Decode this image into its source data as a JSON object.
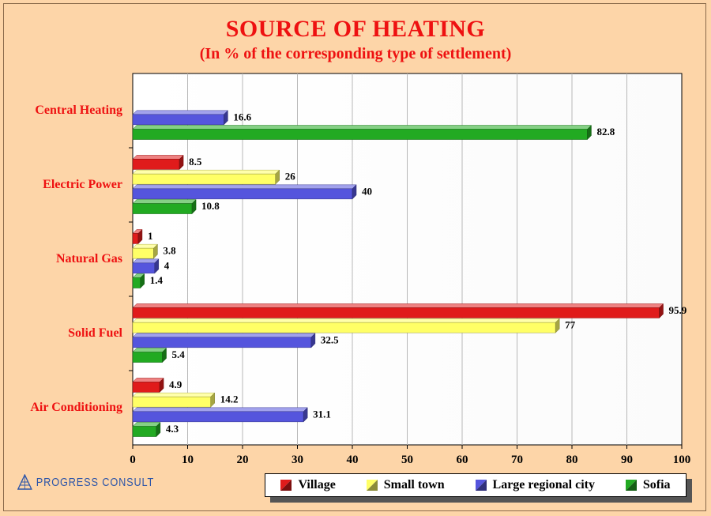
{
  "title": "SOURCE OF HEATING",
  "subtitle": "(In % of the corresponding type of settlement)",
  "logo_text": "PROGRESS CONSULT",
  "chart_data": {
    "type": "bar",
    "orientation": "horizontal",
    "categories": [
      "Central Heating",
      "Electric Power",
      "Natural Gas",
      "Solid Fuel",
      "Air Conditioning"
    ],
    "series": [
      {
        "name": "Village",
        "color": "#e01b1b",
        "values": [
          null,
          8.5,
          1,
          95.9,
          4.9
        ]
      },
      {
        "name": "Small town",
        "color": "#ffff66",
        "values": [
          null,
          26,
          3.8,
          77,
          14.2
        ]
      },
      {
        "name": "Large regional city",
        "color": "#5555dd",
        "values": [
          16.6,
          40,
          4,
          32.5,
          31.1
        ]
      },
      {
        "name": "Sofia",
        "color": "#22aa22",
        "values": [
          82.8,
          10.8,
          1.4,
          5.4,
          4.3
        ]
      }
    ],
    "xlim": [
      0,
      100
    ],
    "xticks": [
      0,
      10,
      20,
      30,
      40,
      50,
      60,
      70,
      80,
      90,
      100
    ],
    "grid": true,
    "legend": "bottom-right"
  }
}
